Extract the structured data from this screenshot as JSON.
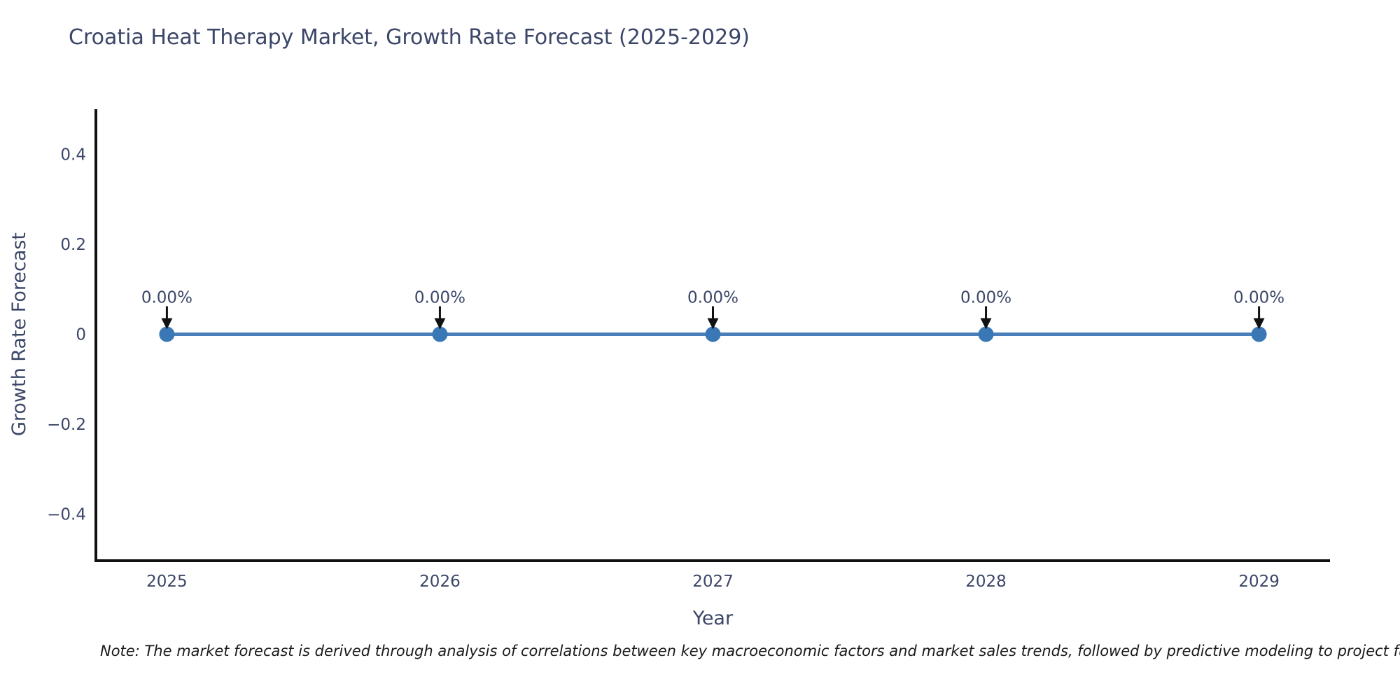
{
  "page": {
    "title": "Croatia Heat Therapy Market, Growth Rate Forecast (2025-2029)"
  },
  "note": "Note: The market forecast is derived through analysis of correlations between key macroeconomic factors and market sales trends, followed by predictive modeling to project future sa",
  "chart_data": {
    "type": "line",
    "title": "Croatia Heat Therapy Market, Growth Rate Forecast (2025-2029)",
    "xlabel": "Year",
    "ylabel": "Growth Rate Forecast",
    "x": [
      2025,
      2026,
      2027,
      2028,
      2029
    ],
    "x_tick_labels": [
      "2025",
      "2026",
      "2027",
      "2028",
      "2029"
    ],
    "series": [
      {
        "name": "Growth Rate Forecast",
        "values": [
          0,
          0,
          0,
          0,
          0
        ]
      }
    ],
    "point_labels": [
      "0.00%",
      "0.00%",
      "0.00%",
      "0.00%",
      "0.00%"
    ],
    "y_ticks": [
      {
        "value": 0.4,
        "label": "0.4"
      },
      {
        "value": 0.2,
        "label": "0.2"
      },
      {
        "value": 0,
        "label": "0"
      },
      {
        "value": -0.2,
        "label": "−0.2"
      },
      {
        "value": -0.4,
        "label": "−0.4"
      }
    ],
    "xlim": [
      2024.74,
      2029.26
    ],
    "ylim": [
      -0.5,
      0.5
    ],
    "grid": false,
    "legend": "none",
    "colors": {
      "line": "#4a80b9",
      "marker": "#3a78b5",
      "axis": "#111111",
      "text": "#3b4668",
      "annotation_text": "#3b4668",
      "annotation_arrow": "#111111"
    }
  }
}
